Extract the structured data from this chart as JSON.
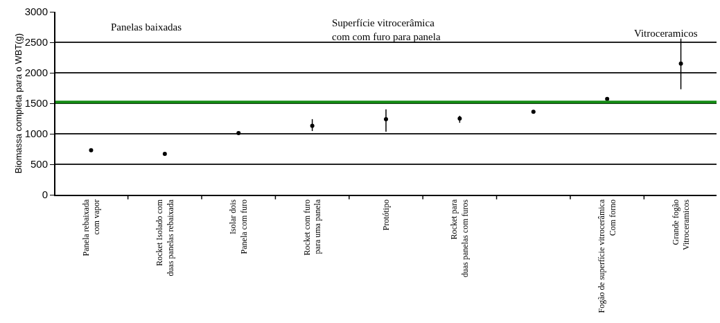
{
  "chart_data": {
    "type": "scatter",
    "ylabel": "Biomassa completa para o WBT(g)",
    "categories": [
      "Panela rebaixada\ncom vapor",
      "Rocket Isolado com\nduas panelas rebaixada",
      "Isolar dois\nPanela com furo",
      "Rocket com furo\npara uma panela",
      "Protótipo",
      "Rocket para\nduas panelas com furos",
      null,
      "Fogão de superfície vitrocerâmica\nCom forno",
      "Grande fogão\nVitroceramicos"
    ],
    "values": [
      730,
      670,
      1010,
      1130,
      1240,
      1250,
      1360,
      1570,
      2150
    ],
    "errors": [
      null,
      null,
      null,
      [
        1045,
        1240
      ],
      [
        1035,
        1400
      ],
      [
        1180,
        1295
      ],
      null,
      null,
      [
        1730,
        2560
      ]
    ],
    "color": "#000000",
    "marker": "circle",
    "ylim": [
      0,
      3000
    ],
    "yticks": [
      0,
      500,
      1000,
      1500,
      2000,
      2500,
      3000
    ],
    "grid": "y",
    "ref_lines": [
      {
        "axis": "y",
        "value": 1520,
        "color": "#138a13"
      }
    ],
    "annotations": [
      "Panelas baixadas",
      "Superfície vitrocerâmica\ncom com furo para panela",
      "Vitroceramicos"
    ]
  }
}
